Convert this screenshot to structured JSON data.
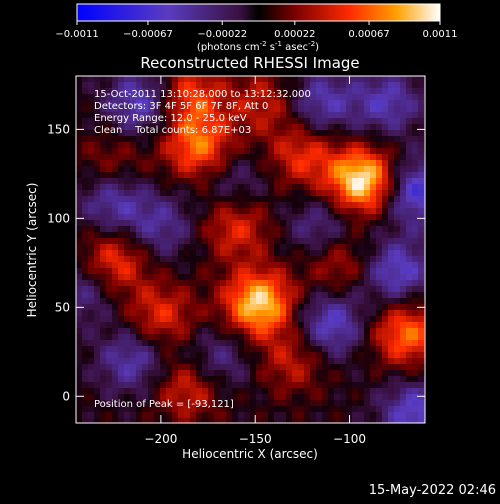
{
  "chart_data": {
    "type": "heatmap",
    "title": "Reconstructed RHESSI Image",
    "xlabel": "Heliocentric X (arcsec)",
    "ylabel": "Heliocentric Y (arcsec)",
    "xlim": [
      -245,
      -60
    ],
    "ylim": [
      -15,
      180
    ],
    "x_ticks": [
      -200,
      -150,
      -100
    ],
    "y_ticks": [
      0,
      50,
      100,
      150
    ],
    "colorbar": {
      "range": [
        -0.0011,
        0.0011
      ],
      "tick_labels": [
        "-0.0011",
        "-0.00067",
        "-0.00022",
        "0.00022",
        "0.00067",
        "0.0011"
      ],
      "unit_main": "(photons cm",
      "unit_sup1": "-2",
      "unit_mid1": " s",
      "unit_sup2": "-1",
      "unit_mid2": " asec",
      "unit_sup3": "-2",
      "unit_end": ")"
    },
    "peak": {
      "x": -93,
      "y": 121,
      "value": 0.0011
    },
    "annotations": {
      "time": "15-Oct-2011 13:10:28.000 to 13:12:32.000",
      "detectors": "Detectors: 3F 4F 5F 6F 7F 8F, Att 0",
      "energy": "Energy Range: 12.0 - 25.0 keV",
      "clean": "Clean    Total counts: 6.87E+03",
      "peak_text": "Position of Peak = [-93,121]"
    },
    "hot_regions": [
      {
        "x": -93,
        "y": 121,
        "value": 0.0011
      },
      {
        "x": -148,
        "y": 52,
        "value": 0.001
      },
      {
        "x": -180,
        "y": 140,
        "value": 0.0007
      },
      {
        "x": -185,
        "y": 168,
        "value": 0.0006
      },
      {
        "x": -225,
        "y": 75,
        "value": 0.0006
      },
      {
        "x": -70,
        "y": 35,
        "value": 0.0007
      },
      {
        "x": -200,
        "y": 45,
        "value": 0.0005
      },
      {
        "x": -125,
        "y": 135,
        "value": 0.0005
      },
      {
        "x": -160,
        "y": 95,
        "value": 0.0005
      },
      {
        "x": -105,
        "y": 75,
        "value": 0.0004
      },
      {
        "x": -185,
        "y": 5,
        "value": 0.0005
      },
      {
        "x": -130,
        "y": 20,
        "value": 0.0004
      },
      {
        "x": -225,
        "y": 130,
        "value": 0.0003
      },
      {
        "x": -145,
        "y": 165,
        "value": 0.0004
      }
    ],
    "cold_regions": [
      {
        "x": -210,
        "y": 165,
        "value": -0.0006
      },
      {
        "x": -225,
        "y": 110,
        "value": -0.0005
      },
      {
        "x": -215,
        "y": 20,
        "value": -0.0005
      },
      {
        "x": -200,
        "y": 95,
        "value": -0.0004
      },
      {
        "x": -110,
        "y": 40,
        "value": -0.0006
      },
      {
        "x": -75,
        "y": 70,
        "value": -0.0006
      },
      {
        "x": -65,
        "y": 115,
        "value": -0.0007
      },
      {
        "x": -115,
        "y": 165,
        "value": -0.0005
      },
      {
        "x": -115,
        "y": 95,
        "value": -0.0004
      },
      {
        "x": -170,
        "y": 20,
        "value": -0.0004
      },
      {
        "x": -80,
        "y": 165,
        "value": -0.0005
      },
      {
        "x": -65,
        "y": -10,
        "value": -0.0006
      },
      {
        "x": -240,
        "y": 60,
        "value": -0.0004
      },
      {
        "x": -160,
        "y": 120,
        "value": -0.0003
      }
    ]
  },
  "footer": {
    "date": "15-May-2022 02:46"
  }
}
